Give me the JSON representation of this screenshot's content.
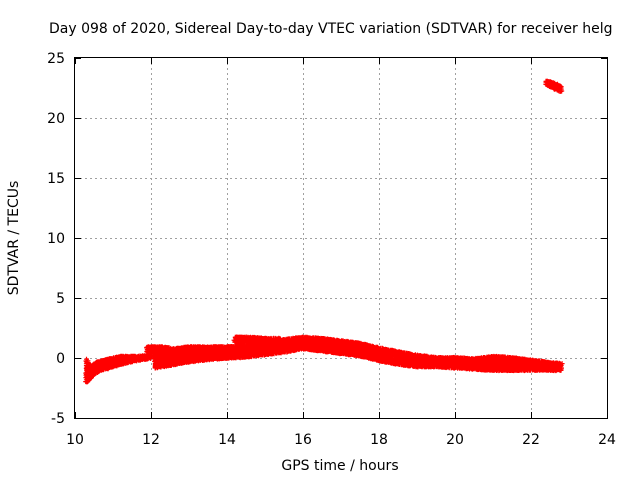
{
  "chart_data": {
    "type": "scatter",
    "title": "Day 098 of 2020, Sidereal Day-to-day VTEC variation (SDTVAR) for receiver helg",
    "xlabel": "GPS time / hours",
    "ylabel": "SDTVAR / TECUs",
    "xlim": [
      10,
      24
    ],
    "ylim": [
      -5,
      25
    ],
    "xticks": [
      10,
      12,
      14,
      16,
      18,
      20,
      22,
      24
    ],
    "yticks": [
      -5,
      0,
      5,
      10,
      15,
      20,
      25
    ],
    "grid": true,
    "marker": "plus",
    "series": [
      {
        "name": "SDTVAR",
        "color": "#ff0000",
        "bands": [
          {
            "x": [
              10.3,
              10.35,
              10.45,
              10.55,
              10.7,
              10.9,
              11.2,
              11.6,
              12.0
            ],
            "upper": [
              -0.1,
              -0.5,
              -0.7,
              -0.4,
              -0.3,
              -0.1,
              0.1,
              0.1,
              0.2
            ],
            "lower": [
              -2.0,
              -1.9,
              -1.5,
              -1.2,
              -1.0,
              -0.8,
              -0.5,
              -0.2,
              0.0
            ]
          },
          {
            "x": [
              11.9,
              12.0,
              12.3,
              12.5
            ],
            "upper": [
              0.9,
              0.9,
              0.9,
              0.8
            ],
            "lower": [
              0.5,
              0.5,
              0.5,
              0.4
            ]
          },
          {
            "x": [
              12.1,
              12.5,
              13.0,
              13.5,
              14.0,
              14.5,
              15.0,
              15.5,
              16.0,
              16.5,
              17.0,
              17.5,
              18.0,
              18.5,
              19.0,
              19.5,
              20.0,
              20.5,
              21.0,
              21.5,
              22.0,
              22.5,
              22.8
            ],
            "upper": [
              0.3,
              0.7,
              0.9,
              0.9,
              0.9,
              1.0,
              1.2,
              1.5,
              1.7,
              1.6,
              1.4,
              1.2,
              0.8,
              0.5,
              0.2,
              0.0,
              0.0,
              -0.1,
              0.1,
              0.0,
              -0.2,
              -0.4,
              -0.5
            ],
            "lower": [
              -0.8,
              -0.6,
              -0.3,
              -0.1,
              0.0,
              0.1,
              0.3,
              0.5,
              0.8,
              0.6,
              0.4,
              0.2,
              -0.2,
              -0.5,
              -0.7,
              -0.7,
              -0.8,
              -0.9,
              -1.0,
              -1.0,
              -1.0,
              -1.0,
              -1.0
            ]
          },
          {
            "x": [
              14.2,
              14.6,
              15.0,
              15.4
            ],
            "upper": [
              1.7,
              1.7,
              1.6,
              1.6
            ],
            "lower": [
              1.3,
              1.3,
              1.3,
              1.3
            ]
          },
          {
            "x": [
              22.4,
              22.6,
              22.8
            ],
            "upper": [
              23.1,
              22.9,
              22.6
            ],
            "lower": [
              22.8,
              22.5,
              22.2
            ]
          }
        ]
      }
    ]
  }
}
